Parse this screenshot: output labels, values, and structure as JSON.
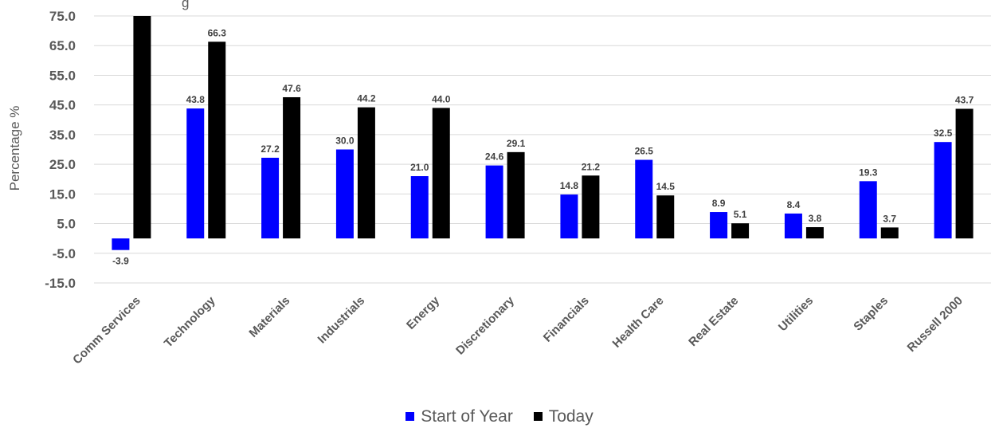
{
  "chart_data": {
    "type": "bar",
    "title": "g",
    "ylabel": "Percentage %",
    "xlabel": "",
    "ylim": [
      -15,
      75
    ],
    "yticks": [
      "75.0",
      "65.0",
      "55.0",
      "45.0",
      "35.0",
      "25.0",
      "15.0",
      "5.0",
      "-5.0",
      "-15.0"
    ],
    "categories": [
      "Comm Services",
      "Technology",
      "Materials",
      "Industrials",
      "Energy",
      "Discretionary",
      "Financials",
      "Health Care",
      "Real Estate",
      "Utilities",
      "Staples",
      "Russell 2000"
    ],
    "series": [
      {
        "name": "Start of Year",
        "color": "#0000FF",
        "values": [
          -3.9,
          43.8,
          27.2,
          30.0,
          21.0,
          24.6,
          14.8,
          26.5,
          8.9,
          8.4,
          19.3,
          32.5
        ],
        "labels": [
          "-3.9",
          "43.8",
          "27.2",
          "30.0",
          "21.0",
          "24.6",
          "14.8",
          "26.5",
          "8.9",
          "8.4",
          "19.3",
          "32.5"
        ]
      },
      {
        "name": "Today",
        "color": "#000000",
        "values": [
          75.0,
          66.3,
          47.6,
          44.2,
          44.0,
          29.1,
          21.2,
          14.5,
          5.1,
          3.8,
          3.7,
          43.7
        ],
        "labels": [
          "",
          "66.3",
          "47.6",
          "44.2",
          "44.0",
          "29.1",
          "21.2",
          "14.5",
          "5.1",
          "3.8",
          "3.7",
          "43.7"
        ]
      }
    ],
    "grid": true,
    "legend_position": "bottom"
  }
}
